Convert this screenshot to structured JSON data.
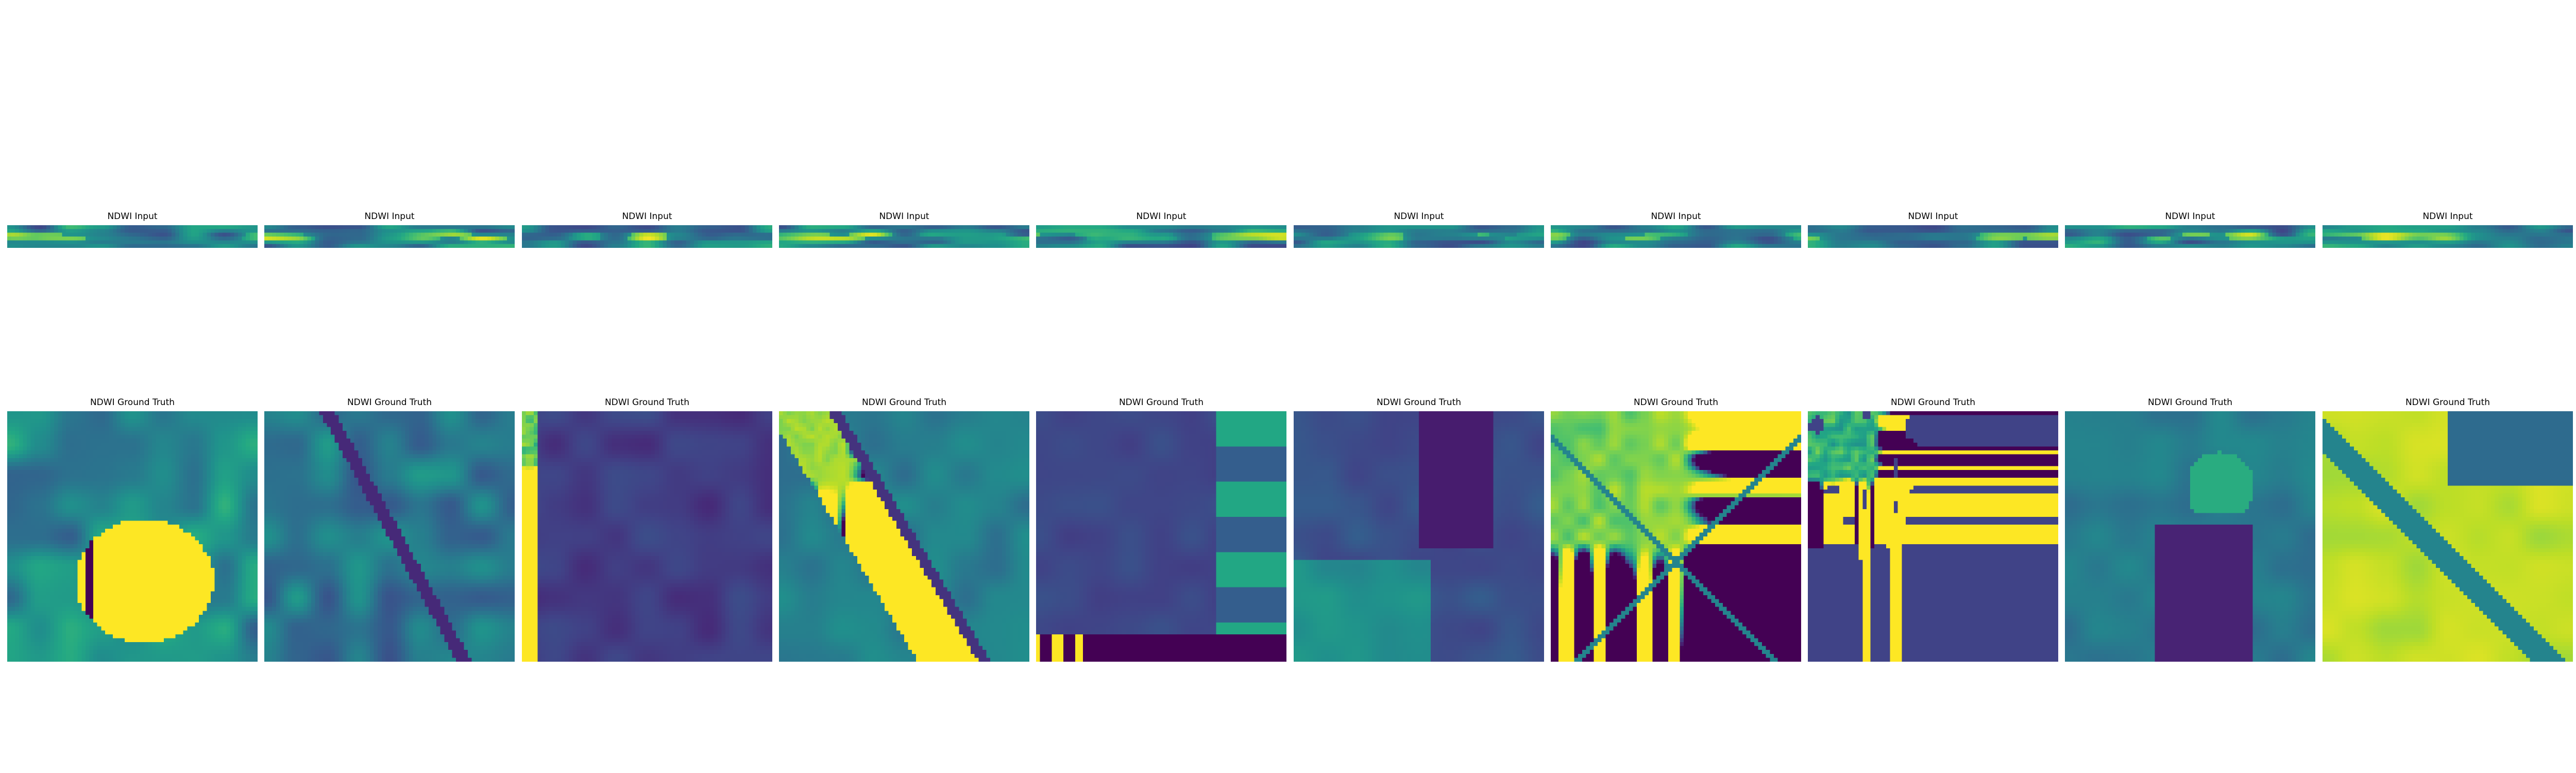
{
  "chart_data": {
    "type": "heatmap",
    "colormap": "viridis",
    "grid": false,
    "rows": [
      {
        "row_name": "input",
        "panel_title": "NDWI Input",
        "titles": [
          "NDWI Input",
          "NDWI Input",
          "NDWI Input",
          "NDWI Input",
          "NDWI Input",
          "NDWI Input",
          "NDWI Input",
          "NDWI Input",
          "NDWI Input",
          "NDWI Input"
        ]
      },
      {
        "row_name": "ground-truth",
        "panel_title": "NDWI Ground Truth",
        "titles": [
          "NDWI Ground Truth",
          "NDWI Ground Truth",
          "NDWI Ground Truth",
          "NDWI Ground Truth",
          "NDWI Ground Truth",
          "NDWI Ground Truth",
          "NDWI Ground Truth",
          "NDWI Ground Truth",
          "NDWI Ground Truth",
          "NDWI Ground Truth"
        ]
      }
    ]
  }
}
